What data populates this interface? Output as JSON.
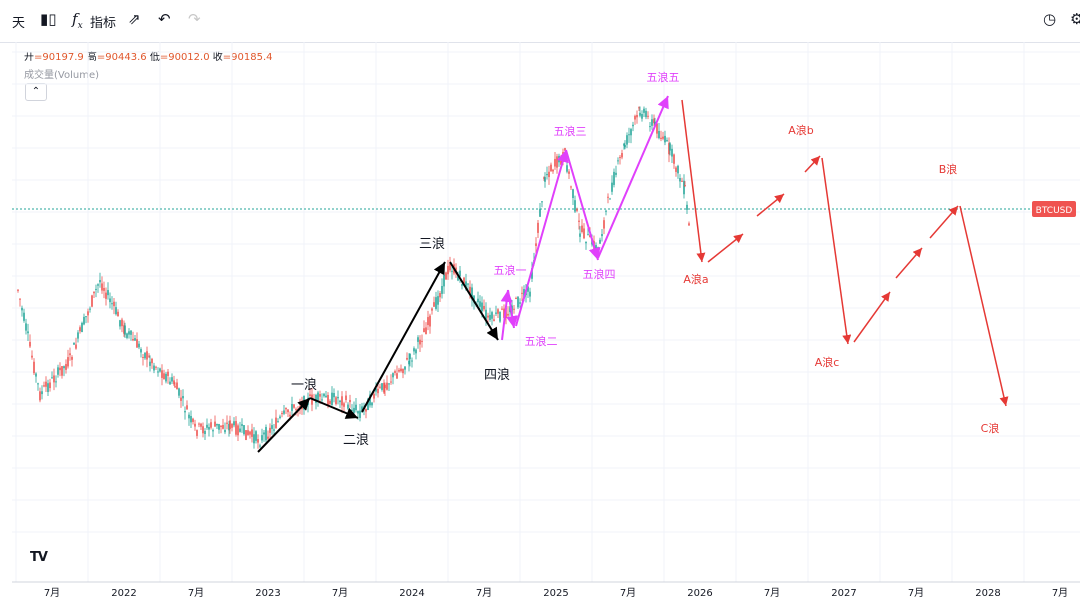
{
  "toolbar": {
    "interval_label": "天",
    "indicators_label": "指标"
  },
  "ohlc": {
    "open_label": "开",
    "open": "=90197.9",
    "high_label": "高",
    "high": "=90443.6",
    "low_label": "低",
    "low": "=90012.0",
    "close_label": "收",
    "close": "=90185.4"
  },
  "volume_label": "成交量(Volume)",
  "symbol_label": "BTCUSD",
  "colors": {
    "up": "#26a69a",
    "down": "#ef5350",
    "wave_black": "#000000",
    "wave_magenta": "#e040fb",
    "wave_red": "#e53935",
    "price_line": "#26a69a"
  },
  "chart_data": {
    "type": "line",
    "x_tick_labels": [
      "7月",
      "2022",
      "7月",
      "2023",
      "7月",
      "2024",
      "7月",
      "2025",
      "7月",
      "2026",
      "7月",
      "2027",
      "7月",
      "2028",
      "7月"
    ],
    "x_range": [
      "2021-05",
      "2028-11"
    ],
    "grid": true,
    "wave_labels": [
      {
        "text": "一浪",
        "date": "2023-07",
        "color": "black"
      },
      {
        "text": "二浪",
        "date": "2023-09",
        "color": "black"
      },
      {
        "text": "三浪",
        "date": "2024-03",
        "color": "black"
      },
      {
        "text": "四浪",
        "date": "2024-08",
        "color": "black"
      },
      {
        "text": "五浪一",
        "date": "2024-09",
        "color": "magenta"
      },
      {
        "text": "五浪二",
        "date": "2024-10",
        "color": "magenta"
      },
      {
        "text": "五浪三",
        "date": "2025-01",
        "color": "magenta"
      },
      {
        "text": "五浪四",
        "date": "2025-04",
        "color": "magenta"
      },
      {
        "text": "五浪五",
        "date": "2025-09",
        "color": "magenta"
      },
      {
        "text": "A浪a",
        "date": "2025-12",
        "color": "red"
      },
      {
        "text": "A浪b",
        "date": "2026-08",
        "color": "red"
      },
      {
        "text": "A浪c",
        "date": "2026-11",
        "color": "red"
      },
      {
        "text": "B浪",
        "date": "2027-08",
        "color": "red"
      },
      {
        "text": "C浪",
        "date": "2028-01",
        "color": "red"
      }
    ]
  }
}
